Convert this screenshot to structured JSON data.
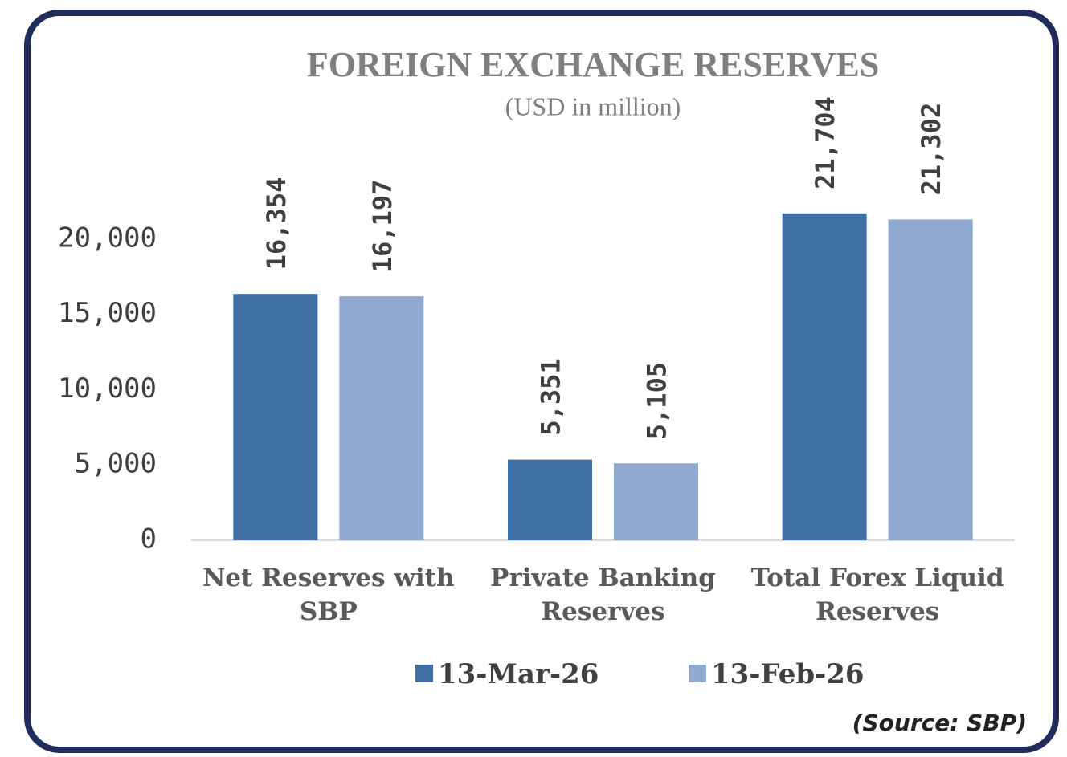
{
  "chart_data": {
    "type": "bar",
    "title": "FOREIGN EXCHANGE RESERVES",
    "subtitle": "(USD in million)",
    "categories": [
      "Net Reserves with SBP",
      "Private Banking Reserves",
      "Total Forex Liquid Reserves"
    ],
    "series": [
      {
        "name": "13-Mar-26",
        "color": "#3f70a5",
        "values": [
          16354,
          5351,
          21704
        ],
        "value_labels": [
          "16,354",
          "5,351",
          "21,704"
        ]
      },
      {
        "name": "13-Feb-26",
        "color": "#8fa9d0",
        "values": [
          16197,
          5105,
          21302
        ],
        "value_labels": [
          "16,197",
          "5,105",
          "21,302"
        ]
      }
    ],
    "ylim": [
      0,
      25000
    ],
    "yticks": [
      0,
      {
        "value": 5000,
        "label": "5,000"
      },
      {
        "value": 10000,
        "label": "10,000"
      },
      {
        "value": 15000,
        "label": "15,000"
      },
      {
        "value": 20000,
        "label": "20,000"
      }
    ],
    "grid": false,
    "legend": "bottom",
    "source": "(Source: SBP)"
  }
}
